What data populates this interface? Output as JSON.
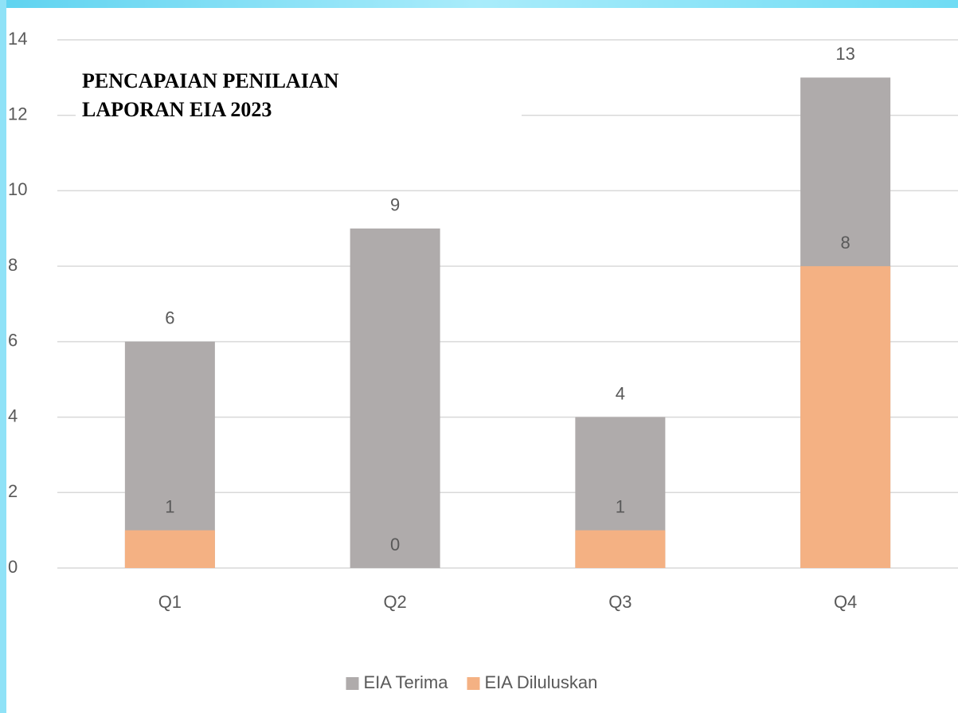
{
  "chart_data": {
    "type": "bar",
    "overlap": true,
    "title": [
      "PENCAPAIAN PENILAIAN",
      "LAPORAN EIA 2023"
    ],
    "categories": [
      "Q1",
      "Q2",
      "Q3",
      "Q4"
    ],
    "series": [
      {
        "name": "EIA Terima",
        "color": "#afabab",
        "values": [
          6,
          9,
          4,
          13
        ]
      },
      {
        "name": "EIA Diluluskan",
        "color": "#f4b183",
        "values": [
          1,
          0,
          1,
          8
        ]
      }
    ],
    "ylim": [
      0,
      14
    ],
    "yticks": [
      0,
      2,
      4,
      6,
      8,
      10,
      12,
      14
    ],
    "grid": true,
    "legend": "bottom"
  }
}
